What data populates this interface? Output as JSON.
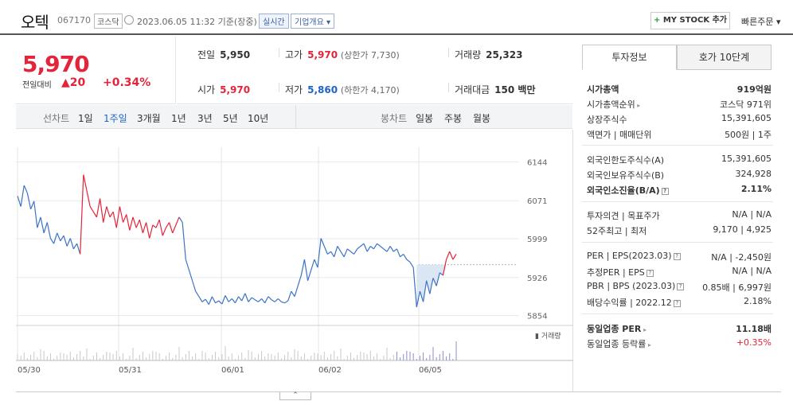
{
  "header": {
    "name": "오텍",
    "code": "067170",
    "market": "코스닥",
    "basis": "2023.06.05 11:32  기준(장중)",
    "realtime": "실시간",
    "company": "기업개요 ▾",
    "mystock_plus": "+",
    "mystock": "MY STOCK 추가",
    "quick": "빠른주문 ▾"
  },
  "price": {
    "now": "5,970",
    "compare_label": "전일대비",
    "change": "▲20",
    "pct": "+0.34%"
  },
  "stats": {
    "prev_label": "전일",
    "prev": "5,950",
    "high_label": "고가",
    "high": "5,970",
    "high_sub": "(상한가 7,730)",
    "volume_label": "거래량",
    "volume": "25,323",
    "open_label": "시가",
    "open": "5,970",
    "low_label": "저가",
    "low": "5,860",
    "low_sub": "(하한가 4,170)",
    "amount_label": "거래대금",
    "amount": "150 백만"
  },
  "toolbar": {
    "line_label": "선차트",
    "line_periods": [
      "1일",
      "1주일",
      "3개월",
      "1년",
      "3년",
      "5년",
      "10년"
    ],
    "selected_period": "1주일",
    "candle_label": "봉차트",
    "candle_periods": [
      "일봉",
      "주봉",
      "월봉"
    ]
  },
  "chart_data": {
    "type": "line",
    "title": "",
    "x_ticks": [
      "05/30",
      "05/31",
      "06/01",
      "06/02",
      "06/05"
    ],
    "y_ticks": [
      6144,
      6071,
      5999,
      5926,
      5854
    ],
    "ylim": [
      5840,
      6160
    ],
    "reference_price": 5950,
    "volume_label": "▮ 거래량",
    "series": [
      {
        "values": [
          6080,
          6060,
          6100,
          6085,
          6055,
          6070,
          6020,
          6040,
          6010,
          6030,
          6000,
          5990,
          6010,
          5995,
          6005,
          5985,
          6000,
          5980,
          5990,
          5970,
          6120,
          6090,
          6060,
          6050,
          6040,
          6075,
          6030,
          6060,
          6040,
          6050,
          6020,
          6060,
          6030,
          6045,
          6015,
          6040,
          6020,
          6035,
          6010,
          6030,
          6000,
          6025,
          6020,
          6035,
          6005,
          6020,
          6030,
          6010,
          6025,
          6040,
          6030,
          5960,
          5940,
          5920,
          5900,
          5890,
          5880,
          5885,
          5875,
          5890,
          5878,
          5882,
          5876,
          5892,
          5880,
          5886,
          5878,
          5890,
          5882,
          5896,
          5880,
          5888,
          5884,
          5880,
          5886,
          5878,
          5890,
          5884,
          5880,
          5886,
          5880,
          5878,
          5882,
          5900,
          5890,
          5910,
          5930,
          5960,
          5920,
          5940,
          5960,
          5945,
          6000,
          5985,
          5970,
          5975,
          5965,
          5985,
          5975,
          5965,
          5980,
          5975,
          5970,
          5980,
          5985,
          5990,
          5975,
          5985,
          5980,
          5990,
          5985,
          5980,
          5975,
          5985,
          5975,
          5980,
          5965,
          5970,
          5960,
          5955,
          5945,
          5870,
          5900,
          5880,
          5920,
          5895,
          5925,
          5910,
          5935,
          5930,
          5960,
          5975,
          5960,
          5970
        ]
      }
    ]
  },
  "panel": {
    "tab_active": "투자정보",
    "tab_other": "호가 10단계",
    "g1": [
      {
        "k": "시가총액",
        "v": "919억원",
        "bold": true
      },
      {
        "k": "시가총액순위",
        "v": "코스닥 971위",
        "caret": true
      },
      {
        "k": "상장주식수",
        "v": "15,391,605"
      },
      {
        "k": "액면가 | 매매단위",
        "v": "500원 | 1주"
      }
    ],
    "g2": [
      {
        "k": "외국인한도주식수(A)",
        "v": "15,391,605"
      },
      {
        "k": "외국인보유주식수(B)",
        "v": "324,928"
      },
      {
        "k": "외국인소진율(B/A)",
        "v": "2.11%",
        "bold": true,
        "q": true
      }
    ],
    "g3": [
      {
        "k": "투자의견 | 목표주가",
        "v": "N/A | N/A"
      },
      {
        "k": "52주최고 | 최저",
        "v": "9,170 | 4,925"
      }
    ],
    "g4": [
      {
        "k": "PER | EPS(2023.03)",
        "v": "N/A | -2,450원",
        "q": true
      },
      {
        "k": "추정PER | EPS",
        "v": "N/A | N/A",
        "q": true
      },
      {
        "k": "PBR | BPS (2023.03)",
        "v": "0.85배 | 6,997원",
        "q": true
      },
      {
        "k": "배당수익률 | 2022.12",
        "v": "2.18%",
        "q": true
      }
    ],
    "g5": [
      {
        "k": "동일업종 PER",
        "v": "11.18배",
        "bold": true,
        "caret": true
      },
      {
        "k": "동일업종 등락률",
        "v": "+0.35%",
        "red": true,
        "caret": true
      }
    ]
  }
}
